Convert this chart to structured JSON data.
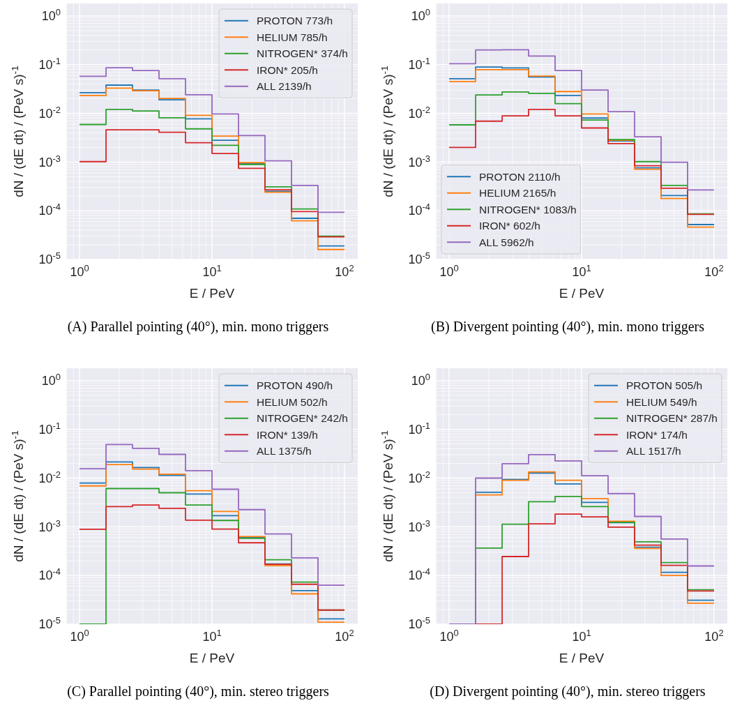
{
  "chart_data": [
    {
      "type": "histogram",
      "xlabel": "E / PeV",
      "ylabel": "dN / (dE dt) / (PeV s)$^{-1}$",
      "log": "xy",
      "grid": true,
      "legend": "top right",
      "bins": [
        1,
        1.585,
        2.512,
        3.981,
        6.31,
        10,
        15.85,
        25.12,
        39.81,
        63.1,
        100
      ],
      "xlim": [
        0.794,
        125.9
      ],
      "ylim": [
        1e-05,
        1.8
      ],
      "xticks": [
        {
          "value": 0.8,
          "label": null
        },
        {
          "value": 0.9,
          "label": null
        },
        {
          "value": 1,
          "label": "10$^{0}$"
        },
        {
          "value": 2,
          "label": null
        },
        {
          "value": 3,
          "label": null
        },
        {
          "value": 4,
          "label": null
        },
        {
          "value": 5,
          "label": null
        },
        {
          "value": 6,
          "label": null
        },
        {
          "value": 7,
          "label": null
        },
        {
          "value": 8,
          "label": null
        },
        {
          "value": 9,
          "label": null
        },
        {
          "value": 10,
          "label": "10$^{1}$"
        },
        {
          "value": 20,
          "label": null
        },
        {
          "value": 30,
          "label": null
        },
        {
          "value": 40,
          "label": null
        },
        {
          "value": 50,
          "label": null
        },
        {
          "value": 60,
          "label": null
        },
        {
          "value": 70,
          "label": null
        },
        {
          "value": 80,
          "label": null
        },
        {
          "value": 90,
          "label": null
        },
        {
          "value": 100,
          "label": "10$^{2}$"
        }
      ],
      "yticks": [
        {
          "value": 1e-05,
          "label": "10$^{-5}$"
        },
        {
          "value": 2e-05,
          "label": null
        },
        {
          "value": 3e-05,
          "label": null
        },
        {
          "value": 4e-05,
          "label": null
        },
        {
          "value": 5e-05,
          "label": null
        },
        {
          "value": 6e-05,
          "label": null
        },
        {
          "value": 7e-05,
          "label": null
        },
        {
          "value": 8e-05,
          "label": null
        },
        {
          "value": 9e-05,
          "label": null
        },
        {
          "value": 0.0001,
          "label": "10$^{-4}$"
        },
        {
          "value": 0.0002,
          "label": null
        },
        {
          "value": 0.0003,
          "label": null
        },
        {
          "value": 0.0004,
          "label": null
        },
        {
          "value": 0.0005,
          "label": null
        },
        {
          "value": 0.0006,
          "label": null
        },
        {
          "value": 0.0007,
          "label": null
        },
        {
          "value": 0.0008,
          "label": null
        },
        {
          "value": 0.0009,
          "label": null
        },
        {
          "value": 0.001,
          "label": "10$^{-3}$"
        },
        {
          "value": 0.002,
          "label": null
        },
        {
          "value": 0.003,
          "label": null
        },
        {
          "value": 0.004,
          "label": null
        },
        {
          "value": 0.005,
          "label": null
        },
        {
          "value": 0.006,
          "label": null
        },
        {
          "value": 0.007,
          "label": null
        },
        {
          "value": 0.008,
          "label": null
        },
        {
          "value": 0.009,
          "label": null
        },
        {
          "value": 0.01,
          "label": "10$^{-2}$"
        },
        {
          "value": 0.02,
          "label": null
        },
        {
          "value": 0.03,
          "label": null
        },
        {
          "value": 0.04,
          "label": null
        },
        {
          "value": 0.05,
          "label": null
        },
        {
          "value": 0.06,
          "label": null
        },
        {
          "value": 0.07,
          "label": null
        },
        {
          "value": 0.08,
          "label": null
        },
        {
          "value": 0.09,
          "label": null
        },
        {
          "value": 0.1,
          "label": "10$^{-1}$"
        },
        {
          "value": 0.2,
          "label": null
        },
        {
          "value": 0.3,
          "label": null
        },
        {
          "value": 0.4,
          "label": null
        },
        {
          "value": 0.5,
          "label": null
        },
        {
          "value": 0.6,
          "label": null
        },
        {
          "value": 0.7,
          "label": null
        },
        {
          "value": 0.8,
          "label": null
        },
        {
          "value": 0.9,
          "label": null
        },
        {
          "value": 1,
          "label": "10$^{0}$"
        }
      ],
      "series": [
        {
          "name": "PROTON 773/h",
          "color": "#1f77b4",
          "values": [
            0.0265,
            0.038,
            0.03,
            0.019,
            0.0077,
            0.0028,
            0.00093,
            0.00025,
            7e-05,
            1.9e-05
          ]
        },
        {
          "name": "HELIUM 785/h",
          "color": "#ff7f0e",
          "values": [
            0.0232,
            0.033,
            0.029,
            0.0202,
            0.0091,
            0.0034,
            0.00097,
            0.00024,
            6.2e-05,
            1.6e-05
          ]
        },
        {
          "name": "NITROGEN* 374/h",
          "color": "#2ca02c",
          "values": [
            0.0059,
            0.012,
            0.0112,
            0.0081,
            0.0048,
            0.0022,
            0.00089,
            0.00031,
            0.000109,
            3e-05
          ]
        },
        {
          "name": "IRON* 205/h",
          "color": "#d62728",
          "values": [
            0.00102,
            0.0046,
            0.0046,
            0.0041,
            0.0025,
            0.0015,
            0.00074,
            0.00027,
            9.6e-05,
            2.9e-05
          ]
        },
        {
          "name": "ALL 2139/h",
          "color": "#9467bd",
          "values": [
            0.0575,
            0.0865,
            0.0757,
            0.0514,
            0.024,
            0.0097,
            0.0035,
            0.00106,
            0.00033,
            9.3e-05
          ]
        }
      ],
      "annotations": [
        "(A) Parallel pointing (40°), min. mono triggers"
      ]
    },
    {
      "type": "histogram",
      "xlabel": "E / PeV",
      "ylabel": "dN / (dE dt) / (PeV s)$^{-1}$",
      "log": "xy",
      "grid": true,
      "legend": "bottom left",
      "bins": [
        1,
        1.585,
        2.512,
        3.981,
        6.31,
        10,
        15.85,
        25.12,
        39.81,
        63.1,
        100
      ],
      "xlim": [
        0.794,
        125.9
      ],
      "ylim": [
        1e-05,
        1.8
      ],
      "xticks": [
        {
          "value": 0.8,
          "label": null
        },
        {
          "value": 0.9,
          "label": null
        },
        {
          "value": 1,
          "label": "10$^{0}$"
        },
        {
          "value": 2,
          "label": null
        },
        {
          "value": 3,
          "label": null
        },
        {
          "value": 4,
          "label": null
        },
        {
          "value": 5,
          "label": null
        },
        {
          "value": 6,
          "label": null
        },
        {
          "value": 7,
          "label": null
        },
        {
          "value": 8,
          "label": null
        },
        {
          "value": 9,
          "label": null
        },
        {
          "value": 10,
          "label": "10$^{1}$"
        },
        {
          "value": 20,
          "label": null
        },
        {
          "value": 30,
          "label": null
        },
        {
          "value": 40,
          "label": null
        },
        {
          "value": 50,
          "label": null
        },
        {
          "value": 60,
          "label": null
        },
        {
          "value": 70,
          "label": null
        },
        {
          "value": 80,
          "label": null
        },
        {
          "value": 90,
          "label": null
        },
        {
          "value": 100,
          "label": "10$^{2}$"
        }
      ],
      "yticks": [
        {
          "value": 1e-05,
          "label": "10$^{-5}$"
        },
        {
          "value": 2e-05,
          "label": null
        },
        {
          "value": 3e-05,
          "label": null
        },
        {
          "value": 4e-05,
          "label": null
        },
        {
          "value": 5e-05,
          "label": null
        },
        {
          "value": 6e-05,
          "label": null
        },
        {
          "value": 7e-05,
          "label": null
        },
        {
          "value": 8e-05,
          "label": null
        },
        {
          "value": 9e-05,
          "label": null
        },
        {
          "value": 0.0001,
          "label": "10$^{-4}$"
        },
        {
          "value": 0.0002,
          "label": null
        },
        {
          "value": 0.0003,
          "label": null
        },
        {
          "value": 0.0004,
          "label": null
        },
        {
          "value": 0.0005,
          "label": null
        },
        {
          "value": 0.0006,
          "label": null
        },
        {
          "value": 0.0007,
          "label": null
        },
        {
          "value": 0.0008,
          "label": null
        },
        {
          "value": 0.0009,
          "label": null
        },
        {
          "value": 0.001,
          "label": "10$^{-3}$"
        },
        {
          "value": 0.002,
          "label": null
        },
        {
          "value": 0.003,
          "label": null
        },
        {
          "value": 0.004,
          "label": null
        },
        {
          "value": 0.005,
          "label": null
        },
        {
          "value": 0.006,
          "label": null
        },
        {
          "value": 0.007,
          "label": null
        },
        {
          "value": 0.008,
          "label": null
        },
        {
          "value": 0.009,
          "label": null
        },
        {
          "value": 0.01,
          "label": "10$^{-2}$"
        },
        {
          "value": 0.02,
          "label": null
        },
        {
          "value": 0.03,
          "label": null
        },
        {
          "value": 0.04,
          "label": null
        },
        {
          "value": 0.05,
          "label": null
        },
        {
          "value": 0.06,
          "label": null
        },
        {
          "value": 0.07,
          "label": null
        },
        {
          "value": 0.08,
          "label": null
        },
        {
          "value": 0.09,
          "label": null
        },
        {
          "value": 0.1,
          "label": "10$^{-1}$"
        },
        {
          "value": 0.2,
          "label": null
        },
        {
          "value": 0.3,
          "label": null
        },
        {
          "value": 0.4,
          "label": null
        },
        {
          "value": 0.5,
          "label": null
        },
        {
          "value": 0.6,
          "label": null
        },
        {
          "value": 0.7,
          "label": null
        },
        {
          "value": 0.8,
          "label": null
        },
        {
          "value": 0.9,
          "label": null
        },
        {
          "value": 1,
          "label": "10$^{0}$"
        }
      ],
      "series": [
        {
          "name": "PROTON 2110/h",
          "color": "#1f77b4",
          "values": [
            0.0514,
            0.089,
            0.0855,
            0.0556,
            0.0232,
            0.008,
            0.0027,
            0.00076,
            0.000205,
            5.2e-05
          ]
        },
        {
          "name": "HELIUM 2165/h",
          "color": "#ff7f0e",
          "values": [
            0.045,
            0.079,
            0.079,
            0.058,
            0.028,
            0.0097,
            0.0028,
            0.00071,
            0.000178,
            4.6e-05
          ]
        },
        {
          "name": "NITROGEN* 1083/h",
          "color": "#2ca02c",
          "values": [
            0.0058,
            0.0238,
            0.0274,
            0.0257,
            0.0158,
            0.0073,
            0.0029,
            0.00102,
            0.00033,
            8.6e-05
          ]
        },
        {
          "name": "IRON* 602/h",
          "color": "#d62728",
          "values": [
            0.002,
            0.0069,
            0.0089,
            0.012,
            0.0089,
            0.005,
            0.0024,
            0.00084,
            0.00029,
            8.4e-05
          ]
        },
        {
          "name": "ALL 5962/h",
          "color": "#9467bd",
          "values": [
            0.104,
            0.2,
            0.202,
            0.15,
            0.0757,
            0.03,
            0.0108,
            0.0033,
            0.00099,
            0.000267
          ]
        }
      ],
      "annotations": [
        "(B) Divergent pointing (40°), min. mono triggers"
      ]
    },
    {
      "type": "histogram",
      "xlabel": "E / PeV",
      "ylabel": "dN / (dE dt) / (PeV s)$^{-1}$",
      "log": "xy",
      "grid": true,
      "legend": "top right",
      "bins": [
        1,
        1.585,
        2.512,
        3.981,
        6.31,
        10,
        15.85,
        25.12,
        39.81,
        63.1,
        100
      ],
      "xlim": [
        0.794,
        125.9
      ],
      "ylim": [
        1e-05,
        1.8
      ],
      "xticks": [
        {
          "value": 0.8,
          "label": null
        },
        {
          "value": 0.9,
          "label": null
        },
        {
          "value": 1,
          "label": "10$^{0}$"
        },
        {
          "value": 2,
          "label": null
        },
        {
          "value": 3,
          "label": null
        },
        {
          "value": 4,
          "label": null
        },
        {
          "value": 5,
          "label": null
        },
        {
          "value": 6,
          "label": null
        },
        {
          "value": 7,
          "label": null
        },
        {
          "value": 8,
          "label": null
        },
        {
          "value": 9,
          "label": null
        },
        {
          "value": 10,
          "label": "10$^{1}$"
        },
        {
          "value": 20,
          "label": null
        },
        {
          "value": 30,
          "label": null
        },
        {
          "value": 40,
          "label": null
        },
        {
          "value": 50,
          "label": null
        },
        {
          "value": 60,
          "label": null
        },
        {
          "value": 70,
          "label": null
        },
        {
          "value": 80,
          "label": null
        },
        {
          "value": 90,
          "label": null
        },
        {
          "value": 100,
          "label": "10$^{2}$"
        }
      ],
      "yticks": [
        {
          "value": 1e-05,
          "label": "10$^{-5}$"
        },
        {
          "value": 2e-05,
          "label": null
        },
        {
          "value": 3e-05,
          "label": null
        },
        {
          "value": 4e-05,
          "label": null
        },
        {
          "value": 5e-05,
          "label": null
        },
        {
          "value": 6e-05,
          "label": null
        },
        {
          "value": 7e-05,
          "label": null
        },
        {
          "value": 8e-05,
          "label": null
        },
        {
          "value": 9e-05,
          "label": null
        },
        {
          "value": 0.0001,
          "label": "10$^{-4}$"
        },
        {
          "value": 0.0002,
          "label": null
        },
        {
          "value": 0.0003,
          "label": null
        },
        {
          "value": 0.0004,
          "label": null
        },
        {
          "value": 0.0005,
          "label": null
        },
        {
          "value": 0.0006,
          "label": null
        },
        {
          "value": 0.0007,
          "label": null
        },
        {
          "value": 0.0008,
          "label": null
        },
        {
          "value": 0.0009,
          "label": null
        },
        {
          "value": 0.001,
          "label": "10$^{-3}$"
        },
        {
          "value": 0.002,
          "label": null
        },
        {
          "value": 0.003,
          "label": null
        },
        {
          "value": 0.004,
          "label": null
        },
        {
          "value": 0.005,
          "label": null
        },
        {
          "value": 0.006,
          "label": null
        },
        {
          "value": 0.007,
          "label": null
        },
        {
          "value": 0.008,
          "label": null
        },
        {
          "value": 0.009,
          "label": null
        },
        {
          "value": 0.01,
          "label": "10$^{-2}$"
        },
        {
          "value": 0.02,
          "label": null
        },
        {
          "value": 0.03,
          "label": null
        },
        {
          "value": 0.04,
          "label": null
        },
        {
          "value": 0.05,
          "label": null
        },
        {
          "value": 0.06,
          "label": null
        },
        {
          "value": 0.07,
          "label": null
        },
        {
          "value": 0.08,
          "label": null
        },
        {
          "value": 0.09,
          "label": null
        },
        {
          "value": 0.1,
          "label": "10$^{-1}$"
        },
        {
          "value": 0.2,
          "label": null
        },
        {
          "value": 0.3,
          "label": null
        },
        {
          "value": 0.4,
          "label": null
        },
        {
          "value": 0.5,
          "label": null
        },
        {
          "value": 0.6,
          "label": null
        },
        {
          "value": 0.7,
          "label": null
        },
        {
          "value": 0.8,
          "label": null
        },
        {
          "value": 0.9,
          "label": null
        },
        {
          "value": 1,
          "label": "10$^{0}$"
        }
      ],
      "series": [
        {
          "name": "PROTON 490/h",
          "color": "#1f77b4",
          "values": [
            0.0079,
            0.0215,
            0.0165,
            0.0114,
            0.0047,
            0.00169,
            0.0006,
            0.000172,
            4.9e-05,
            1.29e-05
          ]
        },
        {
          "name": "HELIUM 502/h",
          "color": "#ff7f0e",
          "values": [
            0.0069,
            0.019,
            0.0153,
            0.012,
            0.0055,
            0.00206,
            0.00063,
            0.000159,
            4.2e-05,
            1.1e-05
          ]
        },
        {
          "name": "NITROGEN* 242/h",
          "color": "#2ca02c",
          "values": [
            null,
            0.0061,
            0.0061,
            0.005,
            0.0028,
            0.00135,
            0.00058,
            0.00021,
            7.3e-05,
            1.95e-05
          ]
        },
        {
          "name": "IRON* 139/h",
          "color": "#d62728",
          "values": [
            0.00089,
            0.0026,
            0.0028,
            0.0024,
            0.00137,
            0.0009,
            0.00047,
            0.00017,
            6.6e-05,
            1.95e-05
          ]
        },
        {
          "name": "ALL 1375/h",
          "color": "#9467bd",
          "values": [
            0.0155,
            0.0488,
            0.0408,
            0.0307,
            0.0142,
            0.0059,
            0.00225,
            0.00071,
            0.00023,
            6.3e-05
          ]
        }
      ],
      "annotations": [
        "(C) Parallel pointing (40°), min. stereo triggers"
      ]
    },
    {
      "type": "histogram",
      "xlabel": "E / PeV",
      "ylabel": "dN / (dE dt) / (PeV s)$^{-1}$",
      "log": "xy",
      "grid": true,
      "legend": "top right",
      "bins": [
        1,
        1.585,
        2.512,
        3.981,
        6.31,
        10,
        15.85,
        25.12,
        39.81,
        63.1,
        100
      ],
      "xlim": [
        0.794,
        125.9
      ],
      "ylim": [
        1e-05,
        1.8
      ],
      "xticks": [
        {
          "value": 0.8,
          "label": null
        },
        {
          "value": 0.9,
          "label": null
        },
        {
          "value": 1,
          "label": "10$^{0}$"
        },
        {
          "value": 2,
          "label": null
        },
        {
          "value": 3,
          "label": null
        },
        {
          "value": 4,
          "label": null
        },
        {
          "value": 5,
          "label": null
        },
        {
          "value": 6,
          "label": null
        },
        {
          "value": 7,
          "label": null
        },
        {
          "value": 8,
          "label": null
        },
        {
          "value": 9,
          "label": null
        },
        {
          "value": 10,
          "label": "10$^{1}$"
        },
        {
          "value": 20,
          "label": null
        },
        {
          "value": 30,
          "label": null
        },
        {
          "value": 40,
          "label": null
        },
        {
          "value": 50,
          "label": null
        },
        {
          "value": 60,
          "label": null
        },
        {
          "value": 70,
          "label": null
        },
        {
          "value": 80,
          "label": null
        },
        {
          "value": 90,
          "label": null
        },
        {
          "value": 100,
          "label": "10$^{2}$"
        }
      ],
      "yticks": [
        {
          "value": 1e-05,
          "label": "10$^{-5}$"
        },
        {
          "value": 2e-05,
          "label": null
        },
        {
          "value": 3e-05,
          "label": null
        },
        {
          "value": 4e-05,
          "label": null
        },
        {
          "value": 5e-05,
          "label": null
        },
        {
          "value": 6e-05,
          "label": null
        },
        {
          "value": 7e-05,
          "label": null
        },
        {
          "value": 8e-05,
          "label": null
        },
        {
          "value": 9e-05,
          "label": null
        },
        {
          "value": 0.0001,
          "label": "10$^{-4}$"
        },
        {
          "value": 0.0002,
          "label": null
        },
        {
          "value": 0.0003,
          "label": null
        },
        {
          "value": 0.0004,
          "label": null
        },
        {
          "value": 0.0005,
          "label": null
        },
        {
          "value": 0.0006,
          "label": null
        },
        {
          "value": 0.0007,
          "label": null
        },
        {
          "value": 0.0008,
          "label": null
        },
        {
          "value": 0.0009,
          "label": null
        },
        {
          "value": 0.001,
          "label": "10$^{-3}$"
        },
        {
          "value": 0.002,
          "label": null
        },
        {
          "value": 0.003,
          "label": null
        },
        {
          "value": 0.004,
          "label": null
        },
        {
          "value": 0.005,
          "label": null
        },
        {
          "value": 0.006,
          "label": null
        },
        {
          "value": 0.007,
          "label": null
        },
        {
          "value": 0.008,
          "label": null
        },
        {
          "value": 0.009,
          "label": null
        },
        {
          "value": 0.01,
          "label": "10$^{-2}$"
        },
        {
          "value": 0.02,
          "label": null
        },
        {
          "value": 0.03,
          "label": null
        },
        {
          "value": 0.04,
          "label": null
        },
        {
          "value": 0.05,
          "label": null
        },
        {
          "value": 0.06,
          "label": null
        },
        {
          "value": 0.07,
          "label": null
        },
        {
          "value": 0.08,
          "label": null
        },
        {
          "value": 0.09,
          "label": null
        },
        {
          "value": 0.1,
          "label": "10$^{-1}$"
        },
        {
          "value": 0.2,
          "label": null
        },
        {
          "value": 0.3,
          "label": null
        },
        {
          "value": 0.4,
          "label": null
        },
        {
          "value": 0.5,
          "label": null
        },
        {
          "value": 0.6,
          "label": null
        },
        {
          "value": 0.7,
          "label": null
        },
        {
          "value": 0.8,
          "label": null
        },
        {
          "value": 0.9,
          "label": null
        },
        {
          "value": 1,
          "label": "10$^{0}$"
        }
      ],
      "series": [
        {
          "name": "PROTON 505/h",
          "color": "#1f77b4",
          "values": [
            null,
            0.0051,
            0.0094,
            0.0127,
            0.0076,
            0.00316,
            0.00122,
            0.00038,
            0.000116,
            3.1e-05
          ]
        },
        {
          "name": "HELIUM 549/h",
          "color": "#ff7f0e",
          "values": [
            null,
            0.0045,
            0.009,
            0.0134,
            0.009,
            0.0038,
            0.0013,
            0.00036,
            0.0001,
            2.7e-05
          ]
        },
        {
          "name": "NITROGEN* 287/h",
          "color": "#2ca02c",
          "values": [
            null,
            0.000365,
            0.00113,
            0.00327,
            0.0042,
            0.0026,
            0.00124,
            0.00049,
            0.000184,
            5.1e-05
          ]
        },
        {
          "name": "IRON* 174/h",
          "color": "#d62728",
          "values": [
            null,
            null,
            0.000245,
            0.00115,
            0.00182,
            0.0016,
            0.00098,
            0.00042,
            0.000161,
            4.8e-05
          ]
        },
        {
          "name": "ALL 1517/h",
          "color": "#9467bd",
          "values": [
            null,
            0.01,
            0.0197,
            0.0303,
            0.0225,
            0.0112,
            0.0048,
            0.00163,
            0.00056,
            0.000157
          ]
        }
      ],
      "annotations": [
        "(D) Divergent pointing (40°), min. stereo triggers"
      ]
    }
  ]
}
